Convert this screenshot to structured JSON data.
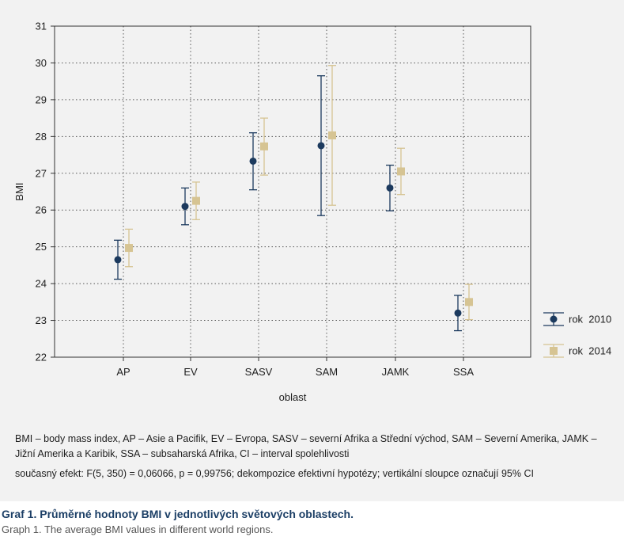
{
  "chart_data": {
    "type": "scatter",
    "ylabel": "BMI",
    "xlabel": "oblast",
    "ylim": [
      22,
      31
    ],
    "yticks": [
      22,
      23,
      24,
      25,
      26,
      27,
      28,
      29,
      30,
      31
    ],
    "categories": [
      "AP",
      "EV",
      "SASV",
      "SAM",
      "JAMK",
      "SSA"
    ],
    "grid": true,
    "legend_position": "bottom-right outside",
    "series": [
      {
        "name": "rok  2010",
        "marker": "circle",
        "color": "#1c3a5e",
        "values": [
          24.65,
          26.1,
          27.33,
          27.75,
          26.6,
          23.2
        ],
        "ci_low": [
          24.12,
          25.6,
          26.55,
          25.85,
          25.98,
          22.72
        ],
        "ci_high": [
          25.18,
          26.6,
          28.1,
          29.65,
          27.22,
          23.68
        ]
      },
      {
        "name": "rok  2014",
        "marker": "square",
        "color": "#d6c493",
        "values": [
          24.97,
          26.25,
          27.73,
          28.03,
          27.05,
          23.5
        ],
        "ci_low": [
          24.46,
          25.74,
          26.95,
          26.13,
          26.42,
          23.02
        ],
        "ci_high": [
          25.48,
          26.76,
          28.5,
          29.93,
          27.68,
          23.98
        ]
      }
    ]
  },
  "notes": {
    "abbreviations": "BMI – body mass index, AP – Asie a Pacifik, EV – Evropa, SASV – severní Afrika a Střední východ, SAM – Severní Amerika, JAMK – Jižní Amerika a Karibik, SSA – subsaharská Afrika, CI – interval spolehlivosti",
    "statistics": "současný efekt: F(5, 350) = 0,06066, p = 0,99756; dekompozice efektivní hypotézy; vertikální sloupce označují 95% CI"
  },
  "caption": {
    "title": "Graf 1. Průměrné hodnoty BMI v jednotlivých světových oblastech.",
    "subtitle": "Graph 1. The average BMI values in different world regions."
  }
}
